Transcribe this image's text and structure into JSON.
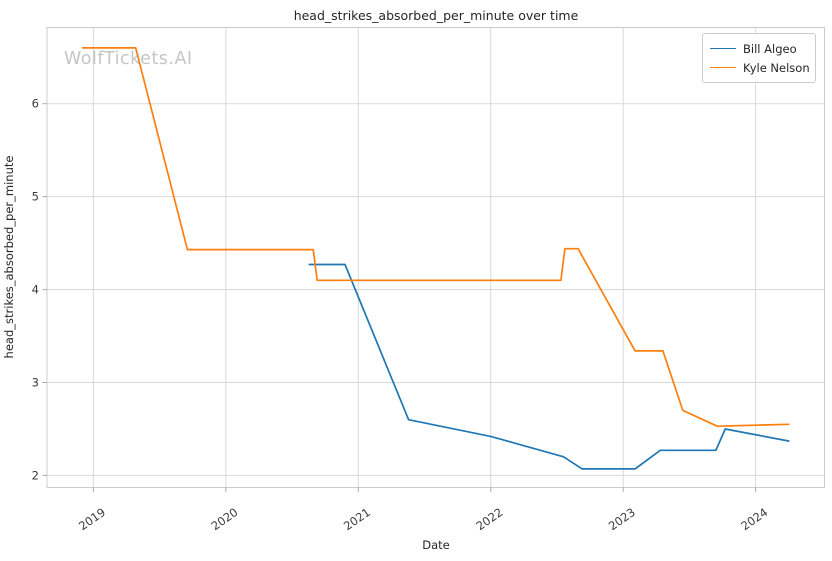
{
  "watermark": "WolfTickets.AI",
  "chart_data": {
    "type": "line",
    "title": "head_strikes_absorbed_per_minute over time",
    "xlabel": "Date",
    "ylabel": "head_strikes_absorbed_per_minute",
    "xlim": [
      2018.65,
      2024.52
    ],
    "ylim": [
      1.87,
      6.82
    ],
    "x_ticks": [
      2019,
      2020,
      2021,
      2022,
      2023,
      2024
    ],
    "x_tick_labels": [
      "2019",
      "2020",
      "2021",
      "2022",
      "2023",
      "2024"
    ],
    "y_ticks": [
      2,
      3,
      4,
      5,
      6
    ],
    "y_tick_labels": [
      "2",
      "3",
      "4",
      "5",
      "6"
    ],
    "grid": true,
    "legend_position": "upper right",
    "colors": {
      "grid": "#d9d9d9",
      "border": "#cccccc",
      "tick": "#aaaaaa",
      "tick_label": "#3b3b3b"
    },
    "series": [
      {
        "name": "Bill Algeo",
        "color": "#1f77b4",
        "points": [
          [
            2020.63,
            4.27
          ],
          [
            2020.9,
            4.27
          ],
          [
            2021.38,
            2.6
          ],
          [
            2022.0,
            2.42
          ],
          [
            2022.55,
            2.2
          ],
          [
            2022.69,
            2.07
          ],
          [
            2023.09,
            2.07
          ],
          [
            2023.28,
            2.27
          ],
          [
            2023.7,
            2.27
          ],
          [
            2023.77,
            2.5
          ],
          [
            2024.25,
            2.37
          ]
        ]
      },
      {
        "name": "Kyle Nelson",
        "color": "#ff7f0e",
        "points": [
          [
            2018.92,
            6.6
          ],
          [
            2019.32,
            6.6
          ],
          [
            2019.71,
            4.43
          ],
          [
            2020.66,
            4.43
          ],
          [
            2020.69,
            4.1
          ],
          [
            2022.53,
            4.1
          ],
          [
            2022.56,
            4.44
          ],
          [
            2022.66,
            4.44
          ],
          [
            2023.09,
            3.34
          ],
          [
            2023.3,
            3.34
          ],
          [
            2023.45,
            2.7
          ],
          [
            2023.71,
            2.53
          ],
          [
            2024.25,
            2.55
          ]
        ]
      }
    ]
  }
}
